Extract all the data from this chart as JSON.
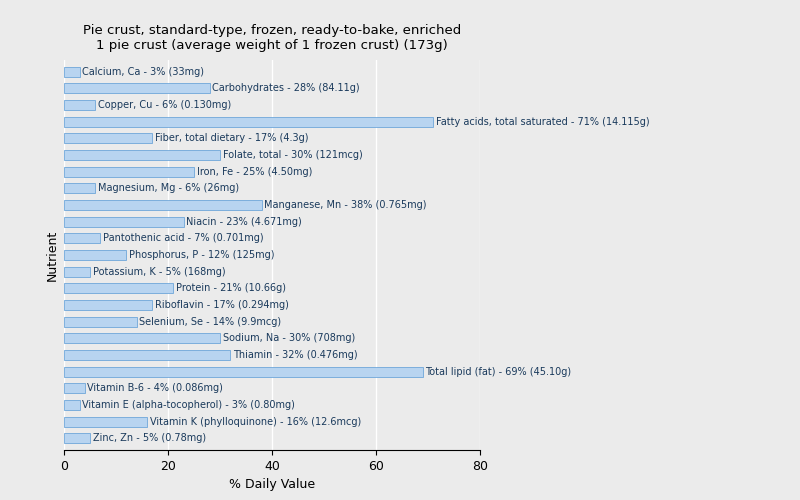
{
  "title": "Pie crust, standard-type, frozen, ready-to-bake, enriched\n1 pie crust (average weight of 1 frozen crust) (173g)",
  "xlabel": "% Daily Value",
  "ylabel": "Nutrient",
  "background_color": "#ebebeb",
  "bar_color": "#b8d4f0",
  "bar_edge_color": "#5b9bd5",
  "text_color": "#1a3a5c",
  "xlim": [
    0,
    80
  ],
  "nutrients": [
    "Calcium, Ca - 3% (33mg)",
    "Carbohydrates - 28% (84.11g)",
    "Copper, Cu - 6% (0.130mg)",
    "Fatty acids, total saturated - 71% (14.115g)",
    "Fiber, total dietary - 17% (4.3g)",
    "Folate, total - 30% (121mcg)",
    "Iron, Fe - 25% (4.50mg)",
    "Magnesium, Mg - 6% (26mg)",
    "Manganese, Mn - 38% (0.765mg)",
    "Niacin - 23% (4.671mg)",
    "Pantothenic acid - 7% (0.701mg)",
    "Phosphorus, P - 12% (125mg)",
    "Potassium, K - 5% (168mg)",
    "Protein - 21% (10.66g)",
    "Riboflavin - 17% (0.294mg)",
    "Selenium, Se - 14% (9.9mcg)",
    "Sodium, Na - 30% (708mg)",
    "Thiamin - 32% (0.476mg)",
    "Total lipid (fat) - 69% (45.10g)",
    "Vitamin B-6 - 4% (0.086mg)",
    "Vitamin E (alpha-tocopherol) - 3% (0.80mg)",
    "Vitamin K (phylloquinone) - 16% (12.6mcg)",
    "Zinc, Zn - 5% (0.78mg)"
  ],
  "values": [
    3,
    28,
    6,
    71,
    17,
    30,
    25,
    6,
    38,
    23,
    7,
    12,
    5,
    21,
    17,
    14,
    30,
    32,
    69,
    4,
    3,
    16,
    5
  ],
  "title_fontsize": 9.5,
  "label_fontsize": 7,
  "axis_fontsize": 9
}
